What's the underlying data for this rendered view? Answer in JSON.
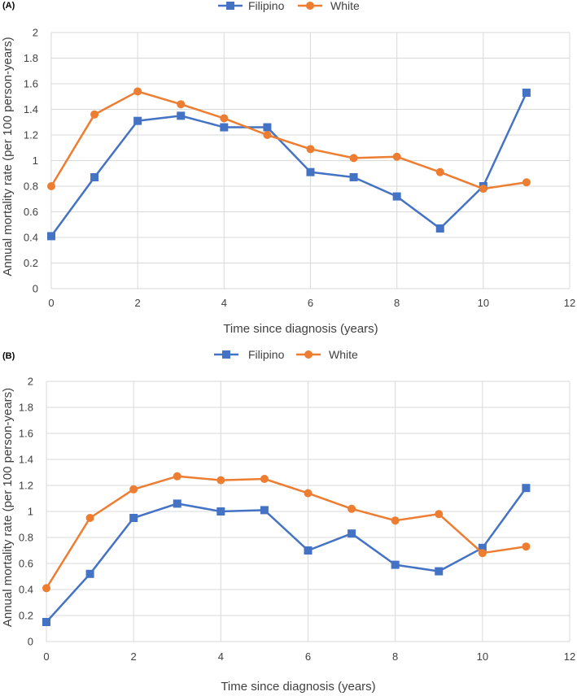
{
  "colors": {
    "Filipino": "#4472c4",
    "White": "#ed7d31"
  },
  "chart_data": [
    {
      "panel": "(A)",
      "type": "line",
      "xlabel": "Time since diagnosis (years)",
      "ylabel": "Annual mortality rate (per 100 person-years)",
      "xlim": [
        0,
        12
      ],
      "ylim": [
        0,
        2
      ],
      "xticks": [
        0,
        2,
        4,
        6,
        8,
        10,
        12
      ],
      "yticks": [
        0,
        0.2,
        0.4,
        0.6,
        0.8,
        1,
        1.2,
        1.4,
        1.6,
        1.8,
        2
      ],
      "x": [
        0,
        1,
        2,
        3,
        4,
        5,
        6,
        7,
        8,
        9,
        10,
        11
      ],
      "series": [
        {
          "name": "Filipino",
          "marker": "square",
          "values": [
            0.41,
            0.87,
            1.31,
            1.35,
            1.26,
            1.26,
            0.91,
            0.87,
            0.72,
            0.47,
            0.8,
            1.53
          ]
        },
        {
          "name": "White",
          "marker": "circle",
          "values": [
            0.8,
            1.36,
            1.54,
            1.44,
            1.33,
            1.2,
            1.09,
            1.02,
            1.03,
            0.91,
            0.78,
            0.83
          ]
        }
      ]
    },
    {
      "panel": "(B)",
      "type": "line",
      "xlabel": "Time since diagnosis (years)",
      "ylabel": "Annual mortality rate (per 100 person-years)",
      "xlim": [
        0,
        12
      ],
      "ylim": [
        0,
        2
      ],
      "xticks": [
        0,
        2,
        4,
        6,
        8,
        10,
        12
      ],
      "yticks": [
        0,
        0.2,
        0.4,
        0.6,
        0.8,
        1,
        1.2,
        1.4,
        1.6,
        1.8,
        2
      ],
      "x": [
        0,
        1,
        2,
        3,
        4,
        5,
        6,
        7,
        8,
        9,
        10,
        11
      ],
      "series": [
        {
          "name": "Filipino",
          "marker": "square",
          "values": [
            0.15,
            0.52,
            0.95,
            1.06,
            1.0,
            1.01,
            0.7,
            0.83,
            0.59,
            0.54,
            0.72,
            1.18
          ]
        },
        {
          "name": "White",
          "marker": "circle",
          "values": [
            0.41,
            0.95,
            1.17,
            1.27,
            1.24,
            1.25,
            1.14,
            1.02,
            0.93,
            0.98,
            0.68,
            0.73
          ]
        }
      ]
    }
  ]
}
